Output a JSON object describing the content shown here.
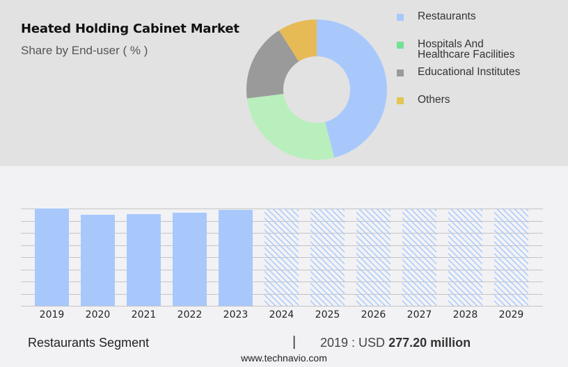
{
  "header": {
    "title": "Heated Holding Cabinet Market",
    "subtitle": "Share by End-user ( % )"
  },
  "legend": {
    "items": [
      {
        "label": "Restaurants",
        "color": "#a8c8fc"
      },
      {
        "label_line1": "Hospitals And",
        "label_line2": "Healthcare Facilities",
        "color": "#74e196"
      },
      {
        "label": "Educational Institutes",
        "color": "#9a9a9a"
      },
      {
        "label": "Others",
        "color": "#e2c553"
      }
    ]
  },
  "footer": {
    "segment": "Restaurants Segment",
    "separator": "|",
    "value_prefix": "2019 : USD ",
    "value_bold": "277.20 million",
    "url": "www.technavio.com"
  },
  "chart_data": [
    {
      "type": "pie",
      "title": "Heated Holding Cabinet Market",
      "subtitle": "Share by End-user ( % )",
      "categories": [
        "Restaurants",
        "Hospitals And Healthcare Facilities",
        "Educational Institutes",
        "Others"
      ],
      "values": [
        46,
        27,
        18,
        9
      ],
      "colors": [
        "#a8c8fc",
        "#b9efbc",
        "#9a9a9a",
        "#e6bb55"
      ],
      "donut": true,
      "legend_position": "right"
    },
    {
      "type": "bar",
      "title": "Restaurants Segment",
      "categories": [
        "2019",
        "2020",
        "2021",
        "2022",
        "2023",
        "2024",
        "2025",
        "2026",
        "2027",
        "2028",
        "2029"
      ],
      "values": [
        277.2,
        259,
        261,
        265,
        273,
        null,
        null,
        null,
        null,
        null,
        null
      ],
      "forecast": [
        false,
        false,
        false,
        false,
        false,
        true,
        true,
        true,
        true,
        true,
        true
      ],
      "annotation": "2019 : USD 277.20 million",
      "xlabel": "",
      "ylabel": "",
      "grid": true,
      "color": "#a8c8fc"
    }
  ]
}
